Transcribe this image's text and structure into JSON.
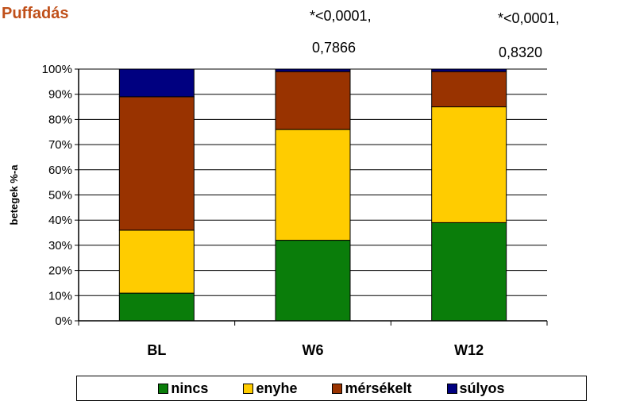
{
  "title": "Puffadás",
  "annotations": [
    {
      "line1": "*<0,0001,",
      "line2": "0,7866"
    },
    {
      "line1": "*<0,0001,",
      "line2": "0,8320"
    }
  ],
  "colors": {
    "nincs": "#0a7d0a",
    "enyhe": "#ffcc00",
    "mersekelt": "#993300",
    "sulyos": "#000080"
  },
  "legend": [
    {
      "label": "nincs",
      "color": "#0a7d0a"
    },
    {
      "label": "enyhe",
      "color": "#ffcc00"
    },
    {
      "label": "mérsékelt",
      "color": "#993300"
    },
    {
      "label": "súlyos",
      "color": "#000080"
    }
  ],
  "chart_data": {
    "type": "bar",
    "stacked": true,
    "percent": true,
    "title": "Puffadás",
    "xlabel": "",
    "ylabel": "betegek %-a",
    "ylim": [
      0,
      100
    ],
    "yticks": [
      "0%",
      "10%",
      "20%",
      "30%",
      "40%",
      "50%",
      "60%",
      "70%",
      "80%",
      "90%",
      "100%"
    ],
    "categories": [
      "BL",
      "W6",
      "W12"
    ],
    "series": [
      {
        "name": "nincs",
        "values": [
          11,
          32,
          39
        ]
      },
      {
        "name": "enyhe",
        "values": [
          25,
          44,
          46
        ]
      },
      {
        "name": "mérsékelt",
        "values": [
          53,
          23,
          14
        ]
      },
      {
        "name": "súlyos",
        "values": [
          11,
          1,
          1
        ]
      }
    ],
    "legend_position": "bottom",
    "grid": true
  }
}
